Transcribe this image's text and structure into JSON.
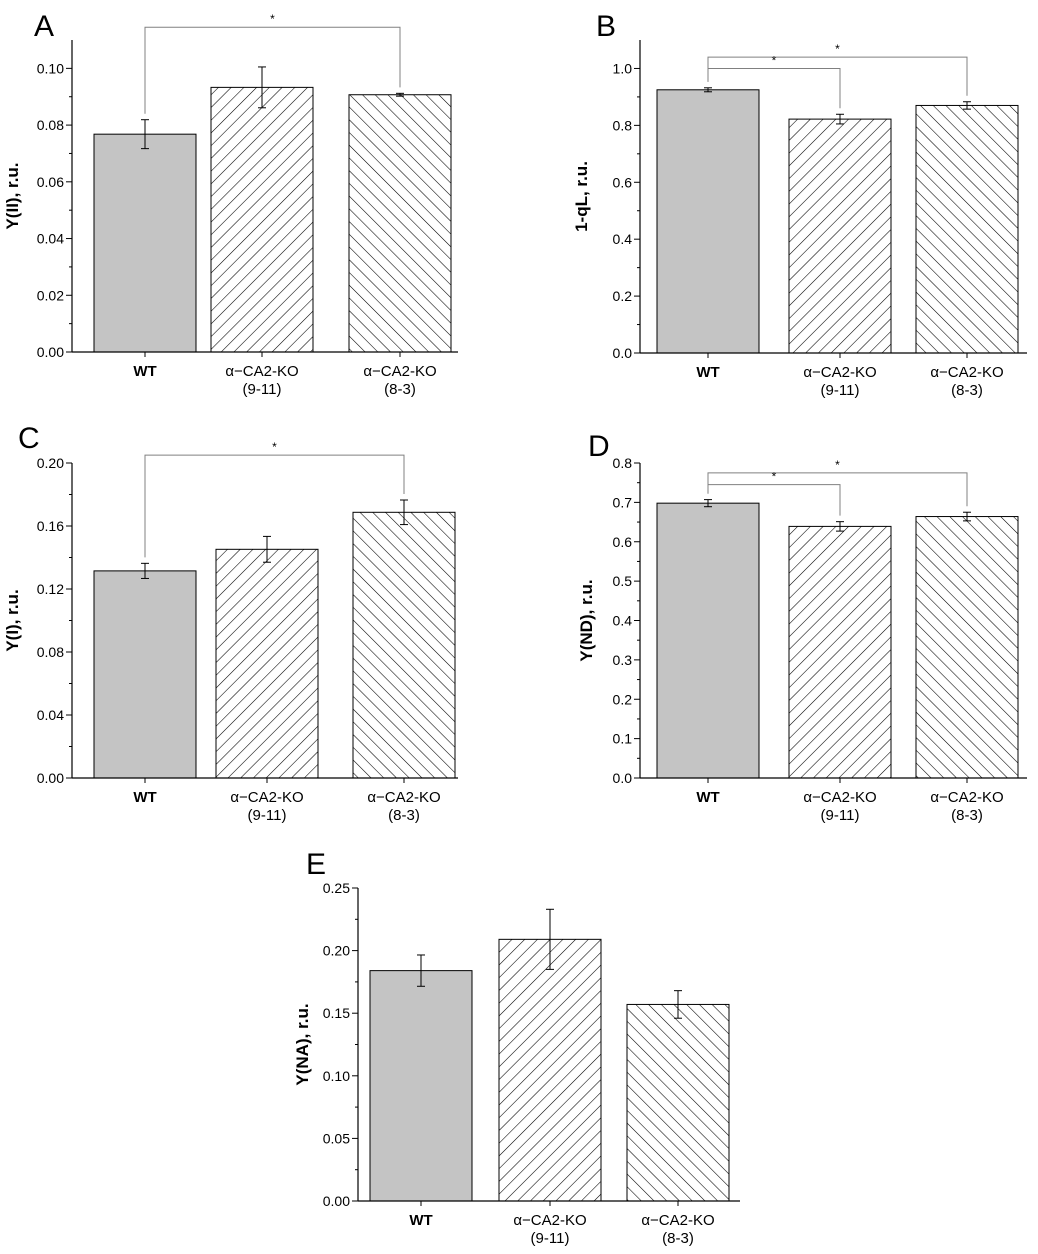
{
  "colors": {
    "wt_fill": "#c4c4c4",
    "axis": "#000000",
    "sig_line": "#808080"
  },
  "chart_data": [
    {
      "id": "A",
      "panel_label": "A",
      "type": "bar",
      "ylabel": "Y(II), r.u.",
      "ylim": [
        0,
        0.11
      ],
      "yticks": [
        0,
        0.02,
        0.04,
        0.06,
        0.08,
        0.1
      ],
      "tick_labels": [
        "0.00",
        "0.02",
        "0.04",
        "0.06",
        "0.08",
        "0.10"
      ],
      "categories": [
        {
          "line1": "WT",
          "line2": "",
          "bold": true
        },
        {
          "line1": "α−CA2-KO",
          "line2": "(9-11)",
          "bold": false
        },
        {
          "line1": "α−CA2-KO",
          "line2": "(8-3)",
          "bold": false
        }
      ],
      "values": [
        0.0768,
        0.0933,
        0.0907
      ],
      "errors": [
        0.0051,
        0.0072,
        0.0005
      ],
      "significance": [
        {
          "from": 0,
          "to": 2,
          "label": "*",
          "level": 0.1145
        }
      ]
    },
    {
      "id": "B",
      "panel_label": "B",
      "type": "bar",
      "ylabel": "1-qL, r.u.",
      "ylim": [
        0,
        1.1
      ],
      "yticks": [
        0,
        0.2,
        0.4,
        0.6,
        0.8,
        1.0
      ],
      "tick_labels": [
        "0.0",
        "0.2",
        "0.4",
        "0.6",
        "0.8",
        "1.0"
      ],
      "categories": [
        {
          "line1": "WT",
          "line2": "",
          "bold": true
        },
        {
          "line1": "α−CA2-KO",
          "line2": "(9-11)",
          "bold": false
        },
        {
          "line1": "α−CA2-KO",
          "line2": "(8-3)",
          "bold": false
        }
      ],
      "values": [
        0.925,
        0.822,
        0.87
      ],
      "errors": [
        0.007,
        0.017,
        0.013
      ],
      "significance": [
        {
          "from": 0,
          "to": 1,
          "label": "*",
          "level": 1.0
        },
        {
          "from": 0,
          "to": 2,
          "label": "*",
          "level": 1.04
        }
      ]
    },
    {
      "id": "C",
      "panel_label": "C",
      "type": "bar",
      "ylabel": "Y(I), r.u.",
      "ylim": [
        0,
        0.2
      ],
      "yticks": [
        0,
        0.04,
        0.08,
        0.12,
        0.16,
        0.2
      ],
      "tick_labels": [
        "0.00",
        "0.04",
        "0.08",
        "0.12",
        "0.16",
        "0.20"
      ],
      "categories": [
        {
          "line1": "WT",
          "line2": "",
          "bold": true
        },
        {
          "line1": "α−CA2-KO",
          "line2": "(9-11)",
          "bold": false
        },
        {
          "line1": "α−CA2-KO",
          "line2": "(8-3)",
          "bold": false
        }
      ],
      "values": [
        0.1315,
        0.1452,
        0.1687
      ],
      "errors": [
        0.0048,
        0.0082,
        0.0078
      ],
      "significance": [
        {
          "from": 0,
          "to": 2,
          "label": "*",
          "level": 0.205
        }
      ]
    },
    {
      "id": "D",
      "panel_label": "D",
      "type": "bar",
      "ylabel": "Y(ND), r.u.",
      "ylim": [
        0,
        0.8
      ],
      "yticks": [
        0,
        0.1,
        0.2,
        0.3,
        0.4,
        0.5,
        0.6,
        0.7,
        0.8
      ],
      "tick_labels": [
        "0.0",
        "0.1",
        "0.2",
        "0.3",
        "0.4",
        "0.5",
        "0.6",
        "0.7",
        "0.8"
      ],
      "categories": [
        {
          "line1": "WT",
          "line2": "",
          "bold": true
        },
        {
          "line1": "α−CA2-KO",
          "line2": "(9-11)",
          "bold": false
        },
        {
          "line1": "α−CA2-KO",
          "line2": "(8-3)",
          "bold": false
        }
      ],
      "values": [
        0.698,
        0.639,
        0.664
      ],
      "errors": [
        0.009,
        0.012,
        0.011
      ],
      "significance": [
        {
          "from": 0,
          "to": 1,
          "label": "*",
          "level": 0.745
        },
        {
          "from": 0,
          "to": 2,
          "label": "*",
          "level": 0.775
        }
      ]
    },
    {
      "id": "E",
      "panel_label": "E",
      "type": "bar",
      "ylabel": "Y(NA), r.u.",
      "ylim": [
        0,
        0.25
      ],
      "yticks": [
        0,
        0.05,
        0.1,
        0.15,
        0.2,
        0.25
      ],
      "tick_labels": [
        "0.00",
        "0.05",
        "0.10",
        "0.15",
        "0.20",
        "0.25"
      ],
      "categories": [
        {
          "line1": "WT",
          "line2": "",
          "bold": true
        },
        {
          "line1": "α−CA2-KO",
          "line2": "(9-11)",
          "bold": false
        },
        {
          "line1": "α−CA2-KO",
          "line2": "(8-3)",
          "bold": false
        }
      ],
      "values": [
        0.184,
        0.209,
        0.157
      ],
      "errors": [
        0.0125,
        0.024,
        0.011
      ],
      "significance": []
    }
  ]
}
